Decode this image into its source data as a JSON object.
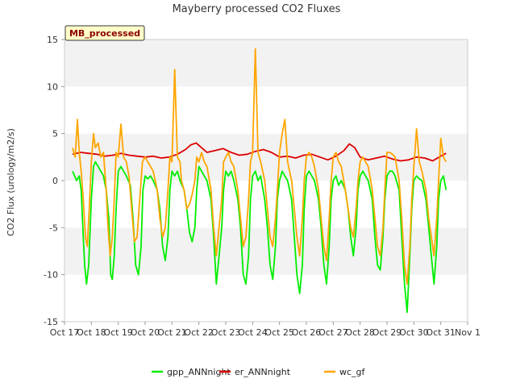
{
  "chart_data": {
    "type": "line",
    "title": "Mayberry processed CO2 Fluxes",
    "ylabel": "CO2 Flux (urology/m2/s)",
    "xlabel": "",
    "ylim": [
      -15,
      15
    ],
    "yticks": [
      -15,
      -10,
      -5,
      0,
      5,
      10,
      15
    ],
    "xlim_days": [
      0,
      15
    ],
    "xticks": [
      "Oct 17",
      "Oct 18",
      "Oct 19",
      "Oct 20",
      "Oct 21",
      "Oct 22",
      "Oct 23",
      "Oct 24",
      "Oct 25",
      "Oct 26",
      "Oct 27",
      "Oct 28",
      "Oct 29",
      "Oct 30",
      "Oct 31",
      "Nov 1"
    ],
    "badge": "MB_processed",
    "legend_position": "bottom-center",
    "grid": "alternating horizontal bands",
    "series": [
      {
        "name": "gpp_ANNnight",
        "color": "#00ee00",
        "x": [
          0.3,
          0.45,
          0.55,
          0.62,
          0.7,
          0.75,
          0.82,
          0.9,
          1.0,
          1.08,
          1.15,
          1.25,
          1.35,
          1.45,
          1.55,
          1.65,
          1.72,
          1.78,
          1.85,
          1.92,
          2.0,
          2.1,
          2.2,
          2.3,
          2.45,
          2.55,
          2.65,
          2.75,
          2.85,
          2.92,
          3.0,
          3.1,
          3.2,
          3.3,
          3.45,
          3.55,
          3.65,
          3.75,
          3.85,
          3.92,
          4.0,
          4.1,
          4.2,
          4.3,
          4.45,
          4.55,
          4.65,
          4.75,
          4.85,
          4.92,
          5.0,
          5.1,
          5.2,
          5.3,
          5.45,
          5.55,
          5.65,
          5.75,
          5.85,
          5.92,
          6.0,
          6.1,
          6.2,
          6.3,
          6.45,
          6.55,
          6.65,
          6.75,
          6.85,
          6.92,
          7.0,
          7.1,
          7.2,
          7.3,
          7.45,
          7.55,
          7.65,
          7.75,
          7.85,
          7.92,
          8.0,
          8.1,
          8.2,
          8.3,
          8.45,
          8.55,
          8.65,
          8.75,
          8.85,
          8.92,
          9.0,
          9.1,
          9.2,
          9.3,
          9.45,
          9.55,
          9.65,
          9.75,
          9.85,
          9.92,
          10.0,
          10.1,
          10.2,
          10.3,
          10.45,
          10.55,
          10.65,
          10.75,
          10.85,
          10.92,
          11.0,
          11.1,
          11.2,
          11.3,
          11.45,
          11.55,
          11.65,
          11.75,
          11.85,
          11.92,
          12.0,
          12.1,
          12.2,
          12.3,
          12.45,
          12.55,
          12.65,
          12.75,
          12.85,
          12.92,
          13.0,
          13.1,
          13.2,
          13.3,
          13.45,
          13.55,
          13.65,
          13.75,
          13.85,
          13.92,
          14.0,
          14.1,
          14.2
        ],
        "y": [
          1,
          0,
          0.5,
          -1,
          -6,
          -9,
          -11,
          -9,
          -2,
          1.5,
          2,
          1.5,
          1,
          0.5,
          -1,
          -4,
          -10,
          -10.5,
          -8,
          -3,
          1,
          1.5,
          1,
          0.5,
          -0.5,
          -4,
          -9,
          -10,
          -7,
          -1,
          0.5,
          0.2,
          0.5,
          0,
          -1,
          -3,
          -7,
          -8.5,
          -6,
          -1,
          1,
          0.5,
          1,
          0,
          -1,
          -3,
          -5.5,
          -6.5,
          -5,
          -1,
          1.5,
          1,
          0.5,
          0,
          -2,
          -6,
          -11,
          -8,
          -5,
          -1,
          1,
          0.5,
          1,
          0,
          -2,
          -5,
          -10,
          -11,
          -8,
          -2,
          0.5,
          1,
          0,
          0.5,
          -2,
          -5,
          -9,
          -10.5,
          -7,
          -2,
          0,
          1,
          0.5,
          0,
          -2,
          -6,
          -10,
          -12,
          -9,
          -3,
          0.5,
          1,
          0.5,
          0,
          -2,
          -5,
          -9,
          -11,
          -7,
          -2,
          0,
          0.5,
          -0.5,
          0,
          -1,
          -3,
          -6,
          -8,
          -5,
          -1,
          0.5,
          1,
          0.5,
          0,
          -2,
          -6,
          -9,
          -9.5,
          -6,
          -2,
          0.5,
          1,
          1,
          0.5,
          -1,
          -6,
          -11,
          -14,
          -8,
          -3,
          0,
          0.5,
          0.2,
          0,
          -2,
          -5,
          -8,
          -11,
          -7,
          -2,
          0,
          0.5,
          -1
        ]
      },
      {
        "name": "er_ANNnight",
        "color": "#dd0000",
        "x": [
          0.3,
          0.6,
          0.9,
          1.2,
          1.5,
          1.8,
          2.1,
          2.4,
          2.7,
          3.0,
          3.3,
          3.6,
          3.9,
          4.2,
          4.5,
          4.7,
          4.9,
          5.1,
          5.3,
          5.6,
          5.9,
          6.2,
          6.5,
          6.8,
          7.1,
          7.4,
          7.7,
          8.0,
          8.3,
          8.6,
          8.9,
          9.2,
          9.5,
          9.8,
          10.1,
          10.4,
          10.6,
          10.8,
          11.0,
          11.3,
          11.6,
          11.9,
          12.2,
          12.5,
          12.8,
          13.1,
          13.4,
          13.7,
          14.0,
          14.2
        ],
        "y": [
          2.8,
          3,
          2.9,
          2.8,
          2.6,
          2.7,
          2.9,
          2.7,
          2.6,
          2.5,
          2.6,
          2.4,
          2.5,
          2.8,
          3.3,
          3.8,
          4,
          3.5,
          3,
          3.2,
          3.4,
          3,
          2.7,
          2.8,
          3.1,
          3.3,
          3,
          2.5,
          2.6,
          2.4,
          2.7,
          2.8,
          2.5,
          2.2,
          2.6,
          3.2,
          3.9,
          3.5,
          2.5,
          2.2,
          2.4,
          2.6,
          2.3,
          2.1,
          2.2,
          2.5,
          2.4,
          2.1,
          2.6,
          2.9
        ]
      },
      {
        "name": "wc_gf",
        "color": "#ffa500",
        "x": [
          0.3,
          0.4,
          0.48,
          0.55,
          0.62,
          0.7,
          0.78,
          0.85,
          0.92,
          1.0,
          1.08,
          1.15,
          1.25,
          1.35,
          1.45,
          1.55,
          1.62,
          1.7,
          1.78,
          1.85,
          1.92,
          2.0,
          2.1,
          2.2,
          2.3,
          2.4,
          2.5,
          2.6,
          2.7,
          2.8,
          2.9,
          3.0,
          3.1,
          3.2,
          3.3,
          3.45,
          3.55,
          3.65,
          3.75,
          3.85,
          3.92,
          4.0,
          4.1,
          4.2,
          4.3,
          4.35,
          4.45,
          4.55,
          4.65,
          4.75,
          4.85,
          4.92,
          5.0,
          5.1,
          5.2,
          5.3,
          5.45,
          5.55,
          5.65,
          5.75,
          5.85,
          5.92,
          6.0,
          6.1,
          6.2,
          6.3,
          6.45,
          6.55,
          6.65,
          6.75,
          6.85,
          6.92,
          7.0,
          7.1,
          7.2,
          7.3,
          7.45,
          7.55,
          7.65,
          7.75,
          7.85,
          7.92,
          8.0,
          8.1,
          8.2,
          8.3,
          8.45,
          8.55,
          8.65,
          8.75,
          8.85,
          8.92,
          9.0,
          9.1,
          9.2,
          9.3,
          9.45,
          9.55,
          9.65,
          9.75,
          9.85,
          9.92,
          10.0,
          10.1,
          10.2,
          10.3,
          10.45,
          10.55,
          10.65,
          10.75,
          10.85,
          10.92,
          11.0,
          11.1,
          11.2,
          11.3,
          11.45,
          11.55,
          11.65,
          11.75,
          11.85,
          11.92,
          12.0,
          12.1,
          12.2,
          12.3,
          12.45,
          12.55,
          12.65,
          12.75,
          12.85,
          12.92,
          13.0,
          13.1,
          13.2,
          13.3,
          13.45,
          13.55,
          13.65,
          13.75,
          13.85,
          13.92,
          14.0,
          14.1,
          14.2
        ],
        "y": [
          3.5,
          2.5,
          6.5,
          3,
          1,
          -2,
          -6,
          -7,
          -3,
          2,
          5,
          3.5,
          4,
          2.5,
          3,
          -1,
          -5,
          -8,
          -6,
          -2,
          3,
          2.5,
          6,
          2.5,
          2,
          0.5,
          -3,
          -6.5,
          -6,
          -2,
          2,
          2.5,
          2,
          1.5,
          1,
          -1,
          -4,
          -6,
          -5,
          -1,
          2.5,
          2,
          11.8,
          2.5,
          2,
          0,
          -1,
          -3,
          -2.5,
          -1.5,
          0,
          2.5,
          2,
          3,
          2,
          1.5,
          -1,
          -5,
          -8,
          -5,
          -2,
          2,
          2.5,
          3,
          2,
          1.5,
          -1,
          -4,
          -7,
          -6,
          -2,
          2,
          3,
          14,
          3,
          2,
          0,
          -3,
          -6,
          -7,
          -4,
          -1,
          3,
          5,
          6.5,
          2,
          0,
          -3,
          -6,
          -8,
          -4,
          0,
          2.5,
          3,
          2.5,
          1.5,
          -1,
          -4,
          -7,
          -8.5,
          -4,
          0,
          2.5,
          3,
          2,
          1.5,
          -1,
          -3,
          -5,
          -6,
          -3,
          0,
          2,
          2.5,
          2,
          1.5,
          -1,
          -4,
          -7,
          -8,
          -5,
          -1,
          3,
          3,
          2.8,
          2.5,
          0,
          -4,
          -9,
          -11,
          -7,
          -2,
          1.5,
          5.5,
          2,
          1,
          -1,
          -4,
          -6,
          -8,
          -4,
          0,
          4.5,
          2.5,
          2
        ]
      }
    ]
  }
}
